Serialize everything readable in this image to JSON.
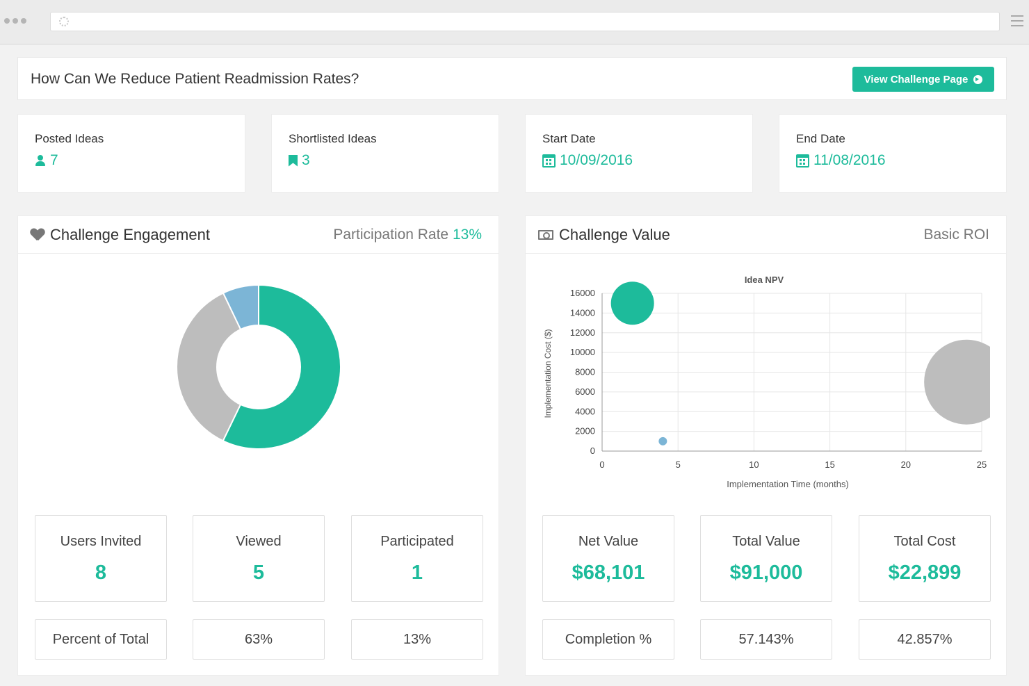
{
  "header": {
    "title": "How Can We Reduce Patient Readmission Rates?",
    "button_label": "View Challenge Page"
  },
  "stats": [
    {
      "label": "Posted Ideas",
      "value": "7",
      "icon": "user-icon"
    },
    {
      "label": "Shortlisted Ideas",
      "value": "3",
      "icon": "bookmark-icon"
    },
    {
      "label": "Start Date",
      "value": "10/09/2016",
      "icon": "calendar-icon"
    },
    {
      "label": "End Date",
      "value": "11/08/2016",
      "icon": "calendar-icon"
    }
  ],
  "engagement": {
    "title": "Challenge Engagement",
    "rate_label": "Participation Rate",
    "rate_value": "13%",
    "boxes": [
      {
        "label": "Users Invited",
        "value": "8"
      },
      {
        "label": "Viewed",
        "value": "5"
      },
      {
        "label": "Participated",
        "value": "1"
      }
    ],
    "row2": [
      "Percent of Total",
      "63%",
      "13%"
    ]
  },
  "value": {
    "title": "Challenge Value",
    "right_label": "Basic ROI",
    "boxes": [
      {
        "label": "Net Value",
        "value": "$68,101"
      },
      {
        "label": "Total Value",
        "value": "$91,000"
      },
      {
        "label": "Total Cost",
        "value": "$22,899"
      }
    ],
    "row2": [
      "Completion %",
      "57.143%",
      "42.857%"
    ]
  },
  "colors": {
    "accent": "#1dbb9b",
    "grey": "#bdbdbd",
    "blue": "#7cb5d6"
  },
  "chart_data": [
    {
      "type": "pie",
      "variant": "donut",
      "slices": [
        {
          "value": 57.1,
          "color": "#1dbb9b"
        },
        {
          "value": 35.7,
          "color": "#bdbdbd"
        },
        {
          "value": 7.1,
          "color": "#7cb5d6"
        }
      ]
    },
    {
      "type": "scatter",
      "variant": "bubble",
      "title": "Idea NPV",
      "xlabel": "Implementation Time (months)",
      "ylabel": "Implementation Cost ($)",
      "xlim": [
        0,
        25
      ],
      "ylim": [
        0,
        16000
      ],
      "xticks": [
        0,
        5,
        10,
        15,
        20,
        25
      ],
      "yticks": [
        0,
        2000,
        4000,
        6000,
        8000,
        10000,
        12000,
        14000,
        16000
      ],
      "grid": true,
      "points": [
        {
          "x": 2,
          "y": 15000,
          "r": 31,
          "color": "#1dbb9b"
        },
        {
          "x": 4,
          "y": 1000,
          "r": 6,
          "color": "#7cb5d6"
        },
        {
          "x": 24,
          "y": 7000,
          "r": 61,
          "color": "#bdbdbd"
        }
      ]
    }
  ]
}
